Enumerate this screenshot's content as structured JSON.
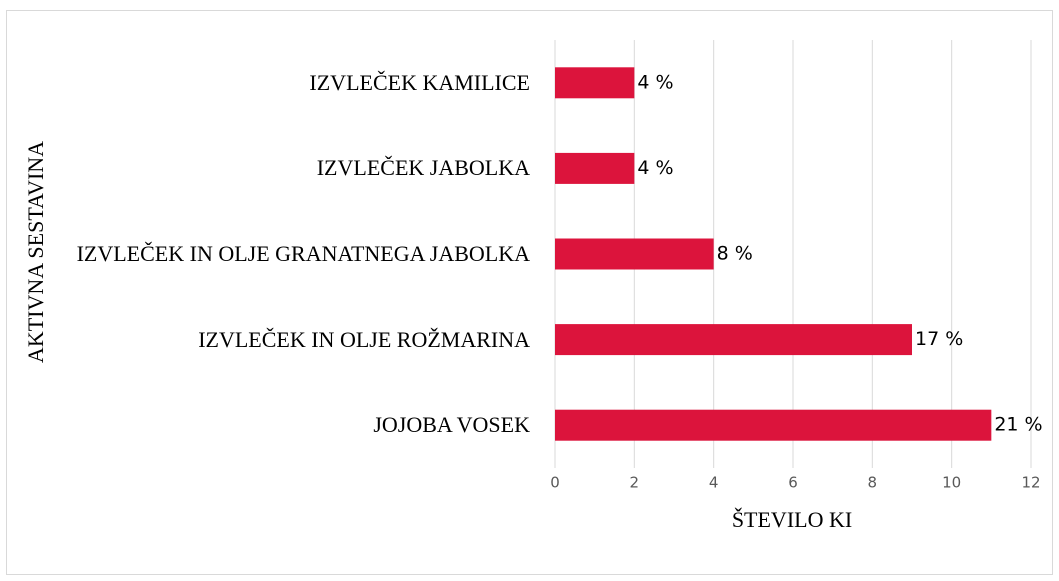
{
  "chart_data": {
    "type": "barh",
    "categories": [
      "IZVLEČEK KAMILICE",
      "IZVLEČEK JABOLKA",
      "IZVLEČEK IN OLJE GRANATNEGA JABOLKA",
      "IZVLEČEK IN OLJE ROŽMARINA",
      "JOJOBA VOSEK"
    ],
    "values": [
      2,
      2,
      4,
      9,
      11
    ],
    "value_labels": [
      "4 %",
      "4 %",
      "8 %",
      "17 %",
      "21 %"
    ],
    "color": "#dc143c",
    "xlabel": "ŠTEVILO KI",
    "ylabel": "AKTIVNA SESTAVINA",
    "xlim": [
      0,
      12
    ],
    "xticks": [
      0,
      2,
      4,
      6,
      8,
      10,
      12
    ],
    "grid": true
  }
}
